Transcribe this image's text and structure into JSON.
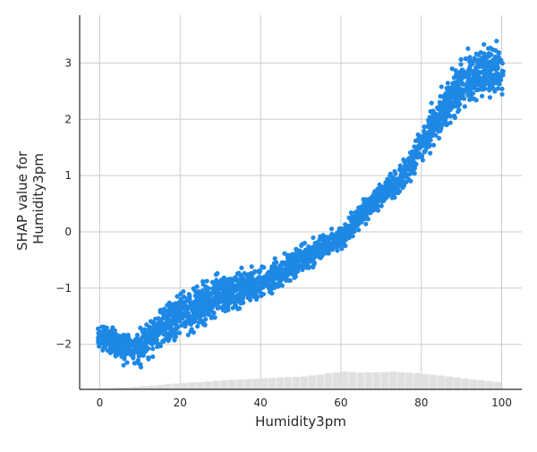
{
  "chart_data": {
    "type": "scatter",
    "title": "",
    "xlabel": "Humidity3pm",
    "ylabel_lines": [
      "SHAP value for",
      "Humidity3pm"
    ],
    "xlim": [
      -5,
      105
    ],
    "ylim": [
      -2.8,
      3.85
    ],
    "x_ticks": [
      0,
      20,
      40,
      60,
      80,
      100
    ],
    "y_ticks": [
      -2,
      -1,
      0,
      1,
      2,
      3
    ],
    "x_tick_labels": [
      "0",
      "20",
      "40",
      "60",
      "80",
      "100"
    ],
    "y_tick_labels": [
      "−2",
      "−1",
      "0",
      "1",
      "2",
      "3"
    ],
    "grid": true,
    "point_color": "#1e88e5",
    "grid_color": "#cccccc",
    "histogram_color": "#e0e0e0",
    "trend": {
      "x": [
        0,
        5,
        10,
        15,
        20,
        25,
        30,
        35,
        40,
        45,
        50,
        55,
        60,
        65,
        70,
        75,
        80,
        85,
        90,
        95,
        100
      ],
      "y": [
        -1.85,
        -2.05,
        -2.05,
        -1.75,
        -1.5,
        -1.3,
        -1.15,
        -1.0,
        -0.9,
        -0.75,
        -0.5,
        -0.3,
        -0.1,
        0.3,
        0.65,
        0.95,
        1.55,
        2.1,
        2.65,
        2.85,
        2.85
      ]
    },
    "spread": {
      "x": [
        0,
        10,
        20,
        30,
        40,
        50,
        60,
        70,
        80,
        90,
        100
      ],
      "y": [
        0.2,
        0.35,
        0.4,
        0.35,
        0.3,
        0.25,
        0.2,
        0.2,
        0.3,
        0.45,
        0.5
      ]
    },
    "histogram": {
      "bin_start": 0,
      "bin_width": 2,
      "rel_heights": [
        0.02,
        0.05,
        0.08,
        0.1,
        0.13,
        0.16,
        0.19,
        0.22,
        0.26,
        0.29,
        0.32,
        0.35,
        0.37,
        0.4,
        0.43,
        0.46,
        0.48,
        0.5,
        0.52,
        0.54,
        0.56,
        0.58,
        0.6,
        0.62,
        0.64,
        0.66,
        0.7,
        0.75,
        0.82,
        0.85,
        0.9,
        0.88,
        0.85,
        0.87,
        0.86,
        0.88,
        0.9,
        0.87,
        0.85,
        0.82,
        0.78,
        0.74,
        0.7,
        0.65,
        0.6,
        0.55,
        0.5,
        0.46,
        0.42,
        0.38
      ]
    }
  }
}
